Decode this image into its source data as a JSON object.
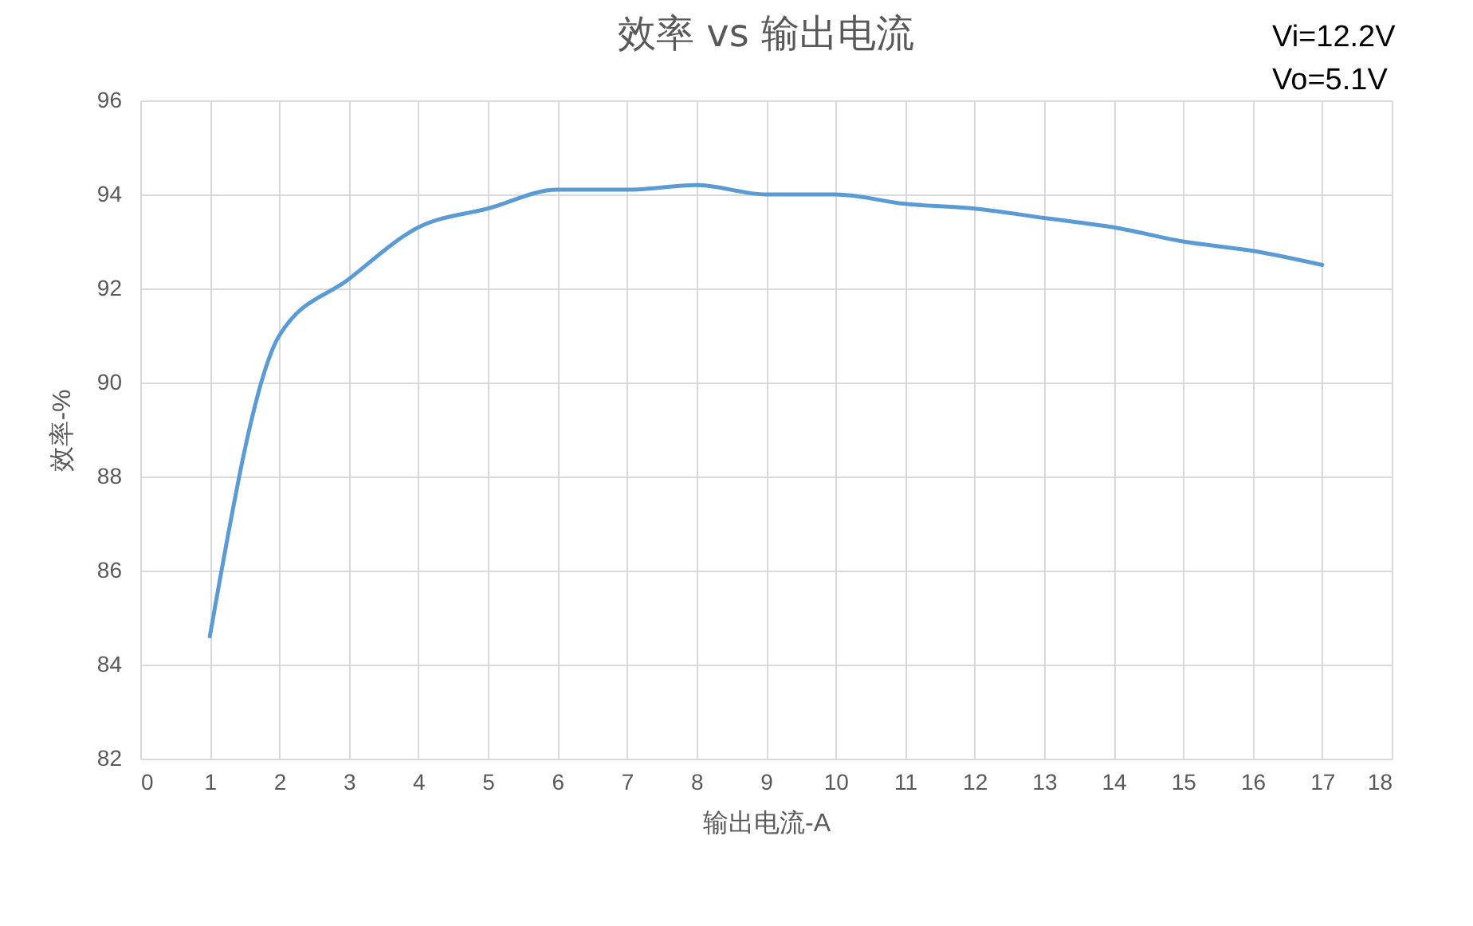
{
  "chart_data": {
    "type": "line",
    "title": "效率 vs 输出电流",
    "xlabel": "输出电流-A",
    "ylabel": "效率-%",
    "x": [
      1,
      2,
      3,
      4,
      5,
      6,
      7,
      8,
      9,
      10,
      11,
      12,
      13,
      14,
      15,
      16,
      17
    ],
    "series": [
      {
        "color": "#5b9bd5",
        "values": [
          84.6,
          91.0,
          92.2,
          93.3,
          93.7,
          94.1,
          94.1,
          94.2,
          94.0,
          94.0,
          93.8,
          93.7,
          93.5,
          93.3,
          93.0,
          92.8,
          92.5
        ]
      }
    ],
    "xlim": [
      0,
      18
    ],
    "xticks": [
      0,
      1,
      2,
      3,
      4,
      5,
      6,
      7,
      8,
      9,
      10,
      11,
      12,
      13,
      14,
      15,
      16,
      17,
      18
    ],
    "ylim": [
      82,
      96
    ],
    "yticks": [
      82,
      84,
      86,
      88,
      90,
      92,
      94,
      96
    ],
    "grid": true,
    "marker": "none",
    "line_style": "solid",
    "annotations": [
      "Vi=12.2V",
      "Vo=5.1V"
    ]
  }
}
